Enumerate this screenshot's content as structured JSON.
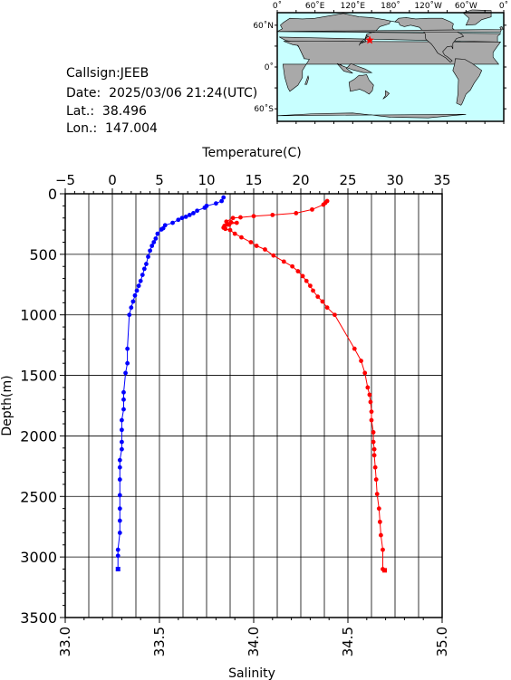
{
  "station": {
    "callsign": "Callsign:JEEB",
    "date": "Date:  2025/03/06 21:24(UTC)",
    "lat": "Lat.:  38.496",
    "lon": "Lon.:  147.004"
  },
  "map": {
    "lon_ticks": [
      "0˚",
      "60˚E",
      "120˚E",
      "180˚",
      "120˚W",
      "60˚W",
      "0˚"
    ],
    "lat_ticks": [
      "60˚N",
      "0˚",
      "60˚S"
    ],
    "marker_lat": 38.496,
    "marker_lon": 147.004,
    "ocean_color": "#c8ffff",
    "land_color": "#a9a9a9",
    "marker_color": "#ff0000"
  },
  "chart_data": {
    "type": "scatter",
    "title": "",
    "top_axis_label": "Temperature(C)",
    "bottom_axis_label": "Salinity",
    "left_axis_label": "Depth(m)",
    "temperature_range": [
      -5,
      35
    ],
    "temperature_ticks": [
      "−5",
      "0",
      "5",
      "10",
      "15",
      "20",
      "25",
      "30",
      "35"
    ],
    "salinity_range": [
      33.0,
      35.0
    ],
    "salinity_ticks": [
      "33.0",
      "33.5",
      "34.0",
      "34.5",
      "35.0"
    ],
    "depth_range": [
      0,
      3500
    ],
    "depth_ticks": [
      "0",
      "500",
      "1000",
      "1500",
      "2000",
      "2500",
      "3000",
      "3500"
    ],
    "grid": true,
    "series": [
      {
        "name": "",
        "axis": "temperature",
        "color": "#ff0000",
        "points": [
          [
            22.8,
            60
          ],
          [
            22.6,
            75
          ],
          [
            22.4,
            90
          ],
          [
            21.2,
            130
          ],
          [
            19.5,
            160
          ],
          [
            17.0,
            175
          ],
          [
            15.0,
            185
          ],
          [
            13.6,
            195
          ],
          [
            12.8,
            200
          ],
          [
            12.1,
            230
          ],
          [
            12.6,
            235
          ],
          [
            13.2,
            240
          ],
          [
            12.2,
            255
          ],
          [
            12.4,
            255
          ],
          [
            11.9,
            265
          ],
          [
            11.8,
            280
          ],
          [
            12.0,
            290
          ],
          [
            12.5,
            300
          ],
          [
            13.0,
            330
          ],
          [
            13.7,
            360
          ],
          [
            14.7,
            400
          ],
          [
            15.3,
            430
          ],
          [
            16.2,
            460
          ],
          [
            17.1,
            510
          ],
          [
            18.2,
            560
          ],
          [
            19.1,
            600
          ],
          [
            19.7,
            640
          ],
          [
            20.2,
            680
          ],
          [
            20.6,
            720
          ],
          [
            21.0,
            760
          ],
          [
            21.3,
            800
          ],
          [
            21.8,
            850
          ],
          [
            22.3,
            890
          ],
          [
            22.8,
            940
          ],
          [
            23.6,
            1000
          ],
          [
            25.7,
            1280
          ],
          [
            26.4,
            1380
          ],
          [
            26.8,
            1480
          ],
          [
            27.1,
            1600
          ],
          [
            27.3,
            1660
          ],
          [
            27.4,
            1720
          ],
          [
            27.5,
            1800
          ],
          [
            27.5,
            1870
          ],
          [
            27.7,
            1970
          ],
          [
            27.7,
            2050
          ],
          [
            27.8,
            2110
          ],
          [
            27.8,
            2160
          ],
          [
            27.9,
            2260
          ],
          [
            28.0,
            2360
          ],
          [
            28.1,
            2480
          ],
          [
            28.3,
            2600
          ],
          [
            28.4,
            2710
          ],
          [
            28.5,
            2820
          ],
          [
            28.7,
            2940
          ],
          [
            28.7,
            3100
          ],
          [
            28.9,
            3110
          ]
        ]
      },
      {
        "name": "",
        "axis": "salinity",
        "color": "#0000ff",
        "points": [
          [
            33.84,
            30
          ],
          [
            33.83,
            60
          ],
          [
            33.8,
            80
          ],
          [
            33.75,
            100
          ],
          [
            33.74,
            115
          ],
          [
            33.7,
            140
          ],
          [
            33.68,
            160
          ],
          [
            33.66,
            175
          ],
          [
            33.64,
            190
          ],
          [
            33.62,
            200
          ],
          [
            33.6,
            215
          ],
          [
            33.57,
            240
          ],
          [
            33.53,
            260
          ],
          [
            33.52,
            285
          ],
          [
            33.51,
            295
          ],
          [
            33.49,
            330
          ],
          [
            33.48,
            370
          ],
          [
            33.47,
            400
          ],
          [
            33.46,
            430
          ],
          [
            33.45,
            470
          ],
          [
            33.44,
            520
          ],
          [
            33.43,
            580
          ],
          [
            33.42,
            620
          ],
          [
            33.41,
            670
          ],
          [
            33.4,
            720
          ],
          [
            33.39,
            760
          ],
          [
            33.38,
            800
          ],
          [
            33.37,
            840
          ],
          [
            33.36,
            890
          ],
          [
            33.35,
            940
          ],
          [
            33.34,
            1000
          ],
          [
            33.33,
            1280
          ],
          [
            33.33,
            1400
          ],
          [
            33.32,
            1480
          ],
          [
            33.31,
            1640
          ],
          [
            33.31,
            1700
          ],
          [
            33.31,
            1780
          ],
          [
            33.3,
            1870
          ],
          [
            33.3,
            1950
          ],
          [
            33.3,
            2050
          ],
          [
            33.3,
            2110
          ],
          [
            33.29,
            2200
          ],
          [
            33.29,
            2260
          ],
          [
            33.29,
            2360
          ],
          [
            33.29,
            2490
          ],
          [
            33.29,
            2600
          ],
          [
            33.29,
            2700
          ],
          [
            33.29,
            2800
          ],
          [
            33.28,
            2940
          ],
          [
            33.28,
            2990
          ],
          [
            33.28,
            3100
          ]
        ]
      }
    ]
  }
}
